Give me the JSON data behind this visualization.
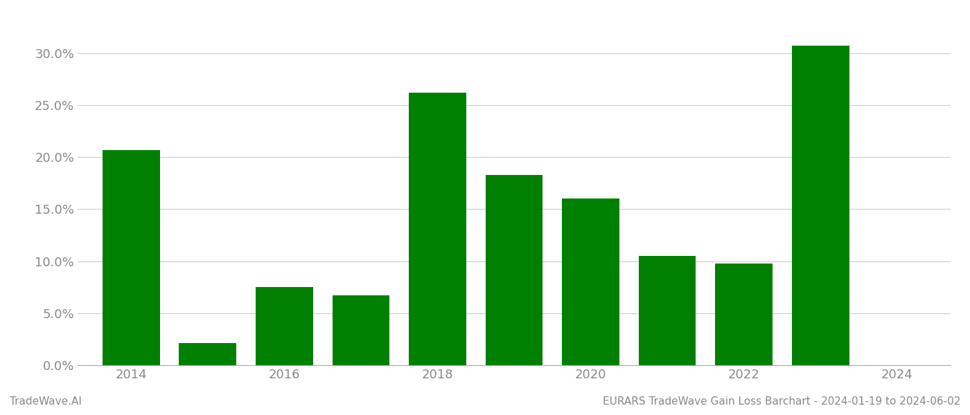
{
  "years": [
    2014,
    2015,
    2016,
    2017,
    2018,
    2019,
    2020,
    2021,
    2022,
    2023,
    2024
  ],
  "values": [
    0.207,
    0.021,
    0.075,
    0.067,
    0.262,
    0.183,
    0.16,
    0.105,
    0.098,
    0.307,
    0.0
  ],
  "bar_color": "#008000",
  "background_color": "#ffffff",
  "grid_color": "#cccccc",
  "axis_color": "#aaaaaa",
  "tick_label_color": "#888888",
  "ylabel_ticks": [
    0.0,
    0.05,
    0.1,
    0.15,
    0.2,
    0.25,
    0.3
  ],
  "xticks": [
    2014,
    2016,
    2018,
    2020,
    2022,
    2024
  ],
  "xlim": [
    2013.3,
    2024.7
  ],
  "ylim": [
    0.0,
    0.335
  ],
  "footer_left": "TradeWave.AI",
  "footer_right": "EURARS TradeWave Gain Loss Barchart - 2024-01-19 to 2024-06-02",
  "footer_color": "#888888",
  "footer_fontsize": 11,
  "bar_width": 0.75
}
